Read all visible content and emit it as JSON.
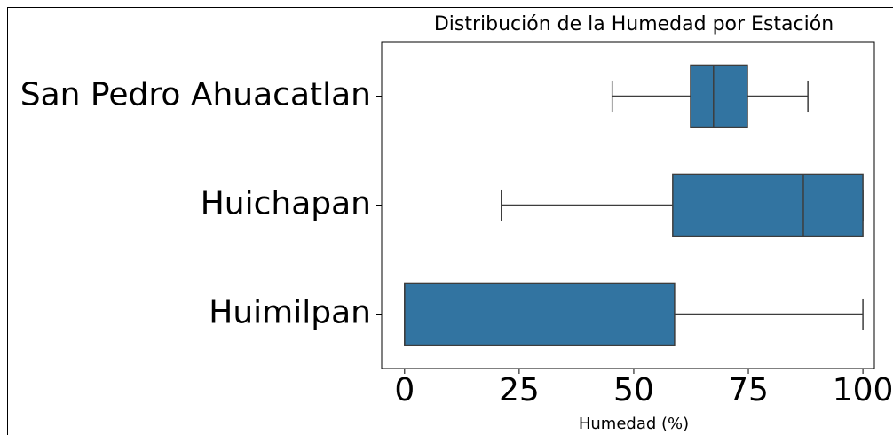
{
  "chart_data": {
    "type": "box",
    "title": "Distribución de la Humedad por Estación",
    "xlabel": "Humedad (%)",
    "categories": [
      "San Pedro Ahuacatlan",
      "Huichapan",
      "Huimilpan"
    ],
    "stats": [
      {
        "low": 45.3,
        "q1": 62.4,
        "median": 67.4,
        "q3": 74.8,
        "high": 88
      },
      {
        "low": 21.1,
        "q1": 58.5,
        "median": 87,
        "q3": 100,
        "high": 100
      },
      {
        "low": 0,
        "q1": 0,
        "median": 0,
        "q3": 58.9,
        "high": 100
      }
    ],
    "color": "#3274a1",
    "xlim": [
      -5,
      102.5
    ],
    "xticks": [
      0,
      25,
      50,
      75,
      100
    ]
  }
}
